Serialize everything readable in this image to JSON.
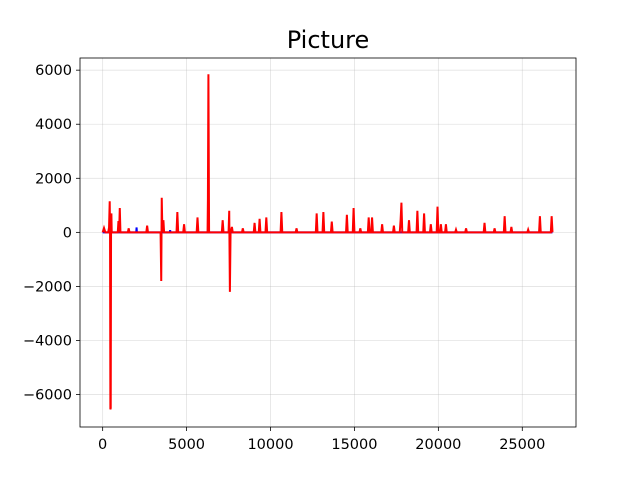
{
  "chart_data": {
    "type": "line",
    "title": "Picture",
    "xlabel": "",
    "ylabel": "",
    "xlim": [
      -1350,
      28200
    ],
    "ylim": [
      -7200,
      6450
    ],
    "x_ticks": [
      0,
      5000,
      10000,
      15000,
      20000,
      25000
    ],
    "x_tick_labels": [
      "0",
      "5000",
      "10000",
      "15000",
      "20000",
      "25000"
    ],
    "y_ticks": [
      -6000,
      -4000,
      -2000,
      0,
      2000,
      4000,
      6000
    ],
    "y_tick_labels": [
      "−6000",
      "−4000",
      "−2000",
      "0",
      "2000",
      "4000",
      "6000"
    ],
    "grid": true,
    "legend": "none",
    "series_colors": {
      "background": "#0000ff",
      "foreground": "#ff0000"
    },
    "series": [
      {
        "role": "background",
        "color": "#0000ff",
        "points": [
          [
            0,
            0
          ],
          [
            2000,
            0
          ],
          [
            2020,
            180
          ],
          [
            2040,
            0
          ],
          [
            3000,
            0
          ],
          [
            4000,
            0
          ],
          [
            4020,
            80
          ],
          [
            4040,
            0
          ],
          [
            26800,
            0
          ]
        ]
      },
      {
        "role": "foreground",
        "color": "#ff0000",
        "points": [
          [
            0,
            0
          ],
          [
            80,
            160
          ],
          [
            160,
            0
          ],
          [
            330,
            0
          ],
          [
            380,
            180
          ],
          [
            420,
            1150
          ],
          [
            440,
            0
          ],
          [
            460,
            -6550
          ],
          [
            480,
            -6500
          ],
          [
            500,
            0
          ],
          [
            520,
            700
          ],
          [
            540,
            0
          ],
          [
            900,
            0
          ],
          [
            940,
            420
          ],
          [
            980,
            0
          ],
          [
            1020,
            900
          ],
          [
            1060,
            0
          ],
          [
            1500,
            0
          ],
          [
            1550,
            150
          ],
          [
            1600,
            0
          ],
          [
            2600,
            0
          ],
          [
            2650,
            250
          ],
          [
            2700,
            0
          ],
          [
            3450,
            0
          ],
          [
            3490,
            -1800
          ],
          [
            3520,
            1280
          ],
          [
            3560,
            0
          ],
          [
            3620,
            450
          ],
          [
            3660,
            0
          ],
          [
            4400,
            0
          ],
          [
            4450,
            750
          ],
          [
            4500,
            0
          ],
          [
            4800,
            0
          ],
          [
            4850,
            300
          ],
          [
            4900,
            0
          ],
          [
            5600,
            0
          ],
          [
            5650,
            550
          ],
          [
            5700,
            0
          ],
          [
            6250,
            0
          ],
          [
            6270,
            1200
          ],
          [
            6300,
            5850
          ],
          [
            6320,
            3000
          ],
          [
            6340,
            0
          ],
          [
            7100,
            0
          ],
          [
            7150,
            450
          ],
          [
            7200,
            0
          ],
          [
            7500,
            0
          ],
          [
            7540,
            800
          ],
          [
            7580,
            -2200
          ],
          [
            7620,
            0
          ],
          [
            7700,
            200
          ],
          [
            7750,
            0
          ],
          [
            8300,
            0
          ],
          [
            8350,
            150
          ],
          [
            8400,
            0
          ],
          [
            9000,
            0
          ],
          [
            9050,
            350
          ],
          [
            9100,
            0
          ],
          [
            9300,
            0
          ],
          [
            9350,
            500
          ],
          [
            9400,
            0
          ],
          [
            9700,
            0
          ],
          [
            9750,
            550
          ],
          [
            9800,
            0
          ],
          [
            10600,
            0
          ],
          [
            10650,
            750
          ],
          [
            10700,
            0
          ],
          [
            11500,
            0
          ],
          [
            11550,
            150
          ],
          [
            11600,
            0
          ],
          [
            12700,
            0
          ],
          [
            12750,
            700
          ],
          [
            12800,
            0
          ],
          [
            13100,
            0
          ],
          [
            13150,
            750
          ],
          [
            13200,
            0
          ],
          [
            13600,
            0
          ],
          [
            13650,
            400
          ],
          [
            13700,
            0
          ],
          [
            14500,
            0
          ],
          [
            14550,
            650
          ],
          [
            14600,
            0
          ],
          [
            14900,
            0
          ],
          [
            14950,
            900
          ],
          [
            15000,
            0
          ],
          [
            15300,
            0
          ],
          [
            15350,
            150
          ],
          [
            15400,
            0
          ],
          [
            15800,
            0
          ],
          [
            15850,
            550
          ],
          [
            15900,
            0
          ],
          [
            16000,
            0
          ],
          [
            16050,
            550
          ],
          [
            16100,
            0
          ],
          [
            16600,
            0
          ],
          [
            16650,
            300
          ],
          [
            16700,
            0
          ],
          [
            17300,
            0
          ],
          [
            17350,
            250
          ],
          [
            17400,
            0
          ],
          [
            17700,
            0
          ],
          [
            17750,
            450
          ],
          [
            17800,
            1100
          ],
          [
            17850,
            0
          ],
          [
            18200,
            0
          ],
          [
            18250,
            450
          ],
          [
            18300,
            0
          ],
          [
            18700,
            0
          ],
          [
            18750,
            800
          ],
          [
            18800,
            0
          ],
          [
            19100,
            0
          ],
          [
            19150,
            700
          ],
          [
            19200,
            0
          ],
          [
            19500,
            0
          ],
          [
            19550,
            300
          ],
          [
            19600,
            0
          ],
          [
            19900,
            0
          ],
          [
            19950,
            950
          ],
          [
            20000,
            0
          ],
          [
            20100,
            0
          ],
          [
            20150,
            300
          ],
          [
            20200,
            0
          ],
          [
            20400,
            0
          ],
          [
            20450,
            300
          ],
          [
            20500,
            0
          ],
          [
            21000,
            0
          ],
          [
            21050,
            100
          ],
          [
            21100,
            0
          ],
          [
            21600,
            0
          ],
          [
            21650,
            150
          ],
          [
            21700,
            0
          ],
          [
            22700,
            0
          ],
          [
            22750,
            350
          ],
          [
            22800,
            0
          ],
          [
            23300,
            0
          ],
          [
            23350,
            150
          ],
          [
            23400,
            0
          ],
          [
            23900,
            0
          ],
          [
            23950,
            600
          ],
          [
            24000,
            0
          ],
          [
            24300,
            0
          ],
          [
            24350,
            200
          ],
          [
            24400,
            0
          ],
          [
            25300,
            0
          ],
          [
            25350,
            100
          ],
          [
            25400,
            0
          ],
          [
            26000,
            0
          ],
          [
            26050,
            600
          ],
          [
            26100,
            0
          ],
          [
            26700,
            0
          ],
          [
            26750,
            600
          ],
          [
            26800,
            0
          ]
        ]
      }
    ]
  }
}
